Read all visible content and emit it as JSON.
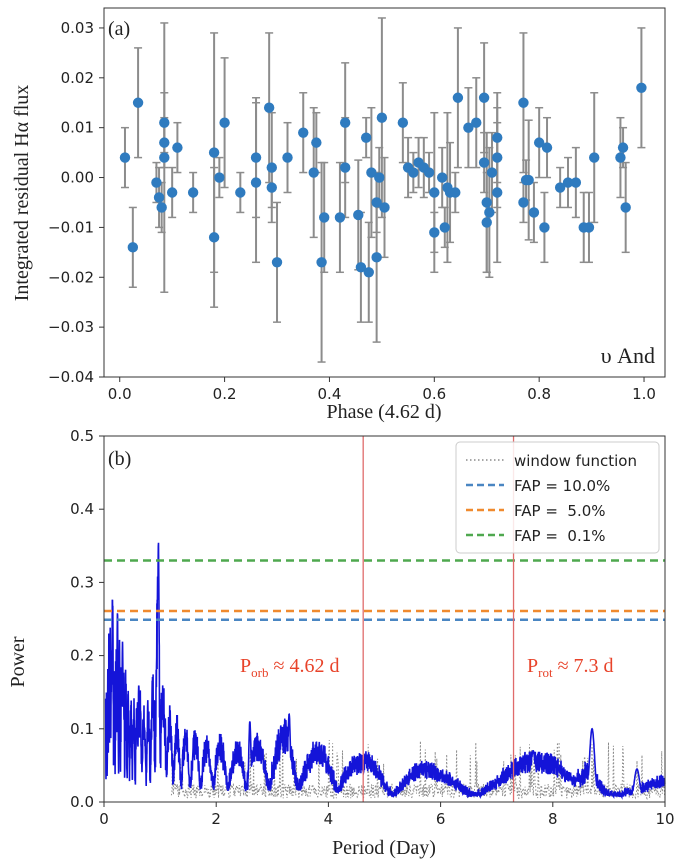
{
  "chart_data": [
    {
      "type": "scatter",
      "panel_label": "(a)",
      "annotation": "υ And",
      "xlabel": "Phase (4.62 d)",
      "ylabel": "Integrated residual Hα flux",
      "xlim": [
        -0.03,
        1.04
      ],
      "ylim": [
        -0.04,
        0.034
      ],
      "xticks": [
        "0.0",
        "0.2",
        "0.4",
        "0.6",
        "0.8",
        "1.0"
      ],
      "xtick_values": [
        0,
        0.2,
        0.4,
        0.6,
        0.8,
        1.0
      ],
      "yticks": [
        "0.03",
        "0.02",
        "0.01",
        "0.00",
        "−0.01",
        "−0.02",
        "−0.03",
        "−0.04"
      ],
      "ytick_values": [
        0.03,
        0.02,
        0.01,
        0.0,
        -0.01,
        -0.02,
        -0.03,
        -0.04
      ],
      "marker_color": "#2f7bbf",
      "errorbar_color": "#8c8c8c",
      "points": [
        {
          "x": 0.01,
          "y": 0.004,
          "err": 0.006
        },
        {
          "x": 0.025,
          "y": -0.014,
          "err": 0.008
        },
        {
          "x": 0.035,
          "y": 0.015,
          "err": 0.011
        },
        {
          "x": 0.07,
          "y": -0.001,
          "err": 0.004
        },
        {
          "x": 0.075,
          "y": -0.004,
          "err": 0.006
        },
        {
          "x": 0.08,
          "y": -0.006,
          "err": 0.005
        },
        {
          "x": 0.085,
          "y": 0.004,
          "err": 0.027
        },
        {
          "x": 0.085,
          "y": 0.011,
          "err": 0.006
        },
        {
          "x": 0.085,
          "y": 0.007,
          "err": 0.005
        },
        {
          "x": 0.1,
          "y": -0.003,
          "err": 0.005
        },
        {
          "x": 0.11,
          "y": 0.006,
          "err": 0.005
        },
        {
          "x": 0.14,
          "y": -0.003,
          "err": 0.004
        },
        {
          "x": 0.18,
          "y": 0.005,
          "err": 0.024
        },
        {
          "x": 0.18,
          "y": -0.012,
          "err": 0.014
        },
        {
          "x": 0.19,
          "y": 0.0,
          "err": 0.004
        },
        {
          "x": 0.2,
          "y": 0.011,
          "err": 0.013
        },
        {
          "x": 0.23,
          "y": -0.003,
          "err": 0.004
        },
        {
          "x": 0.26,
          "y": -0.001,
          "err": 0.016
        },
        {
          "x": 0.26,
          "y": 0.004,
          "err": 0.012
        },
        {
          "x": 0.285,
          "y": 0.014,
          "err": 0.015
        },
        {
          "x": 0.29,
          "y": -0.002,
          "err": 0.004
        },
        {
          "x": 0.29,
          "y": 0.002,
          "err": 0.011
        },
        {
          "x": 0.3,
          "y": -0.017,
          "err": 0.012
        },
        {
          "x": 0.32,
          "y": 0.004,
          "err": 0.007
        },
        {
          "x": 0.35,
          "y": 0.009,
          "err": 0.008
        },
        {
          "x": 0.37,
          "y": 0.001,
          "err": 0.013
        },
        {
          "x": 0.375,
          "y": 0.007,
          "err": 0.006
        },
        {
          "x": 0.385,
          "y": -0.017,
          "err": 0.02
        },
        {
          "x": 0.39,
          "y": -0.008,
          "err": 0.011
        },
        {
          "x": 0.42,
          "y": -0.008,
          "err": 0.011
        },
        {
          "x": 0.43,
          "y": 0.011,
          "err": 0.012
        },
        {
          "x": 0.43,
          "y": 0.002,
          "err": 0.01
        },
        {
          "x": 0.455,
          "y": -0.0075,
          "err": 0.011
        },
        {
          "x": 0.46,
          "y": -0.018,
          "err": 0.011
        },
        {
          "x": 0.47,
          "y": 0.008,
          "err": 0.004
        },
        {
          "x": 0.475,
          "y": -0.019,
          "err": 0.01
        },
        {
          "x": 0.48,
          "y": 0.001,
          "err": 0.013
        },
        {
          "x": 0.49,
          "y": -0.016,
          "err": 0.017
        },
        {
          "x": 0.49,
          "y": -0.005,
          "err": 0.006
        },
        {
          "x": 0.495,
          "y": 0.0,
          "err": 0.006
        },
        {
          "x": 0.5,
          "y": 0.012,
          "err": 0.02
        },
        {
          "x": 0.505,
          "y": -0.006,
          "err": 0.01
        },
        {
          "x": 0.54,
          "y": 0.011,
          "err": 0.008
        },
        {
          "x": 0.55,
          "y": 0.002,
          "err": 0.006
        },
        {
          "x": 0.56,
          "y": 0.001,
          "err": 0.004
        },
        {
          "x": 0.57,
          "y": 0.003,
          "err": 0.005
        },
        {
          "x": 0.58,
          "y": 0.002,
          "err": 0.006
        },
        {
          "x": 0.59,
          "y": 0.001,
          "err": 0.004
        },
        {
          "x": 0.6,
          "y": -0.011,
          "err": 0.004
        },
        {
          "x": 0.6,
          "y": -0.003,
          "err": 0.016
        },
        {
          "x": 0.615,
          "y": 0.0,
          "err": 0.006
        },
        {
          "x": 0.62,
          "y": -0.01,
          "err": 0.004
        },
        {
          "x": 0.625,
          "y": -0.002,
          "err": 0.015
        },
        {
          "x": 0.63,
          "y": -0.003,
          "err": 0.01
        },
        {
          "x": 0.64,
          "y": -0.003,
          "err": 0.004
        },
        {
          "x": 0.645,
          "y": 0.016,
          "err": 0.014
        },
        {
          "x": 0.665,
          "y": 0.01,
          "err": 0.008
        },
        {
          "x": 0.68,
          "y": 0.011,
          "err": 0.009
        },
        {
          "x": 0.695,
          "y": 0.003,
          "err": 0.006
        },
        {
          "x": 0.695,
          "y": 0.016,
          "err": 0.011
        },
        {
          "x": 0.7,
          "y": -0.005,
          "err": 0.014
        },
        {
          "x": 0.7,
          "y": -0.009,
          "err": 0.01
        },
        {
          "x": 0.705,
          "y": -0.007,
          "err": 0.013
        },
        {
          "x": 0.71,
          "y": 0.001,
          "err": 0.008
        },
        {
          "x": 0.72,
          "y": -0.003,
          "err": 0.014
        },
        {
          "x": 0.72,
          "y": 0.004,
          "err": 0.01
        },
        {
          "x": 0.72,
          "y": 0.008,
          "err": 0.009
        },
        {
          "x": 0.77,
          "y": -0.005,
          "err": 0.004
        },
        {
          "x": 0.77,
          "y": 0.015,
          "err": 0.014
        },
        {
          "x": 0.775,
          "y": -0.0005,
          "err": 0.004
        },
        {
          "x": 0.78,
          "y": -0.0005,
          "err": 0.012
        },
        {
          "x": 0.79,
          "y": -0.007,
          "err": 0.006
        },
        {
          "x": 0.8,
          "y": 0.007,
          "err": 0.007
        },
        {
          "x": 0.81,
          "y": -0.01,
          "err": 0.007
        },
        {
          "x": 0.815,
          "y": 0.006,
          "err": 0.006
        },
        {
          "x": 0.84,
          "y": -0.002,
          "err": 0.004
        },
        {
          "x": 0.855,
          "y": -0.001,
          "err": 0.005
        },
        {
          "x": 0.87,
          "y": -0.001,
          "err": 0.007
        },
        {
          "x": 0.885,
          "y": -0.01,
          "err": 0.007
        },
        {
          "x": 0.895,
          "y": -0.01,
          "err": 0.007
        },
        {
          "x": 0.905,
          "y": 0.004,
          "err": 0.013
        },
        {
          "x": 0.955,
          "y": 0.004,
          "err": 0.008
        },
        {
          "x": 0.96,
          "y": 0.006,
          "err": 0.004
        },
        {
          "x": 0.965,
          "y": -0.006,
          "err": 0.009
        },
        {
          "x": 0.995,
          "y": 0.018,
          "err": 0.012
        }
      ]
    },
    {
      "type": "line",
      "panel_label": "(b)",
      "xlabel": "Period (Day)",
      "ylabel": "Power",
      "xlim": [
        0,
        10
      ],
      "ylim": [
        0,
        0.5
      ],
      "xticks": [
        "0",
        "2",
        "4",
        "6",
        "8",
        "10"
      ],
      "xtick_values": [
        0,
        2,
        4,
        6,
        8,
        10
      ],
      "yticks": [
        "0.5",
        "0.4",
        "0.3",
        "0.2",
        "0.1",
        "0.0"
      ],
      "ytick_values": [
        0.5,
        0.4,
        0.3,
        0.2,
        0.1,
        0.0
      ],
      "vlines": [
        {
          "x": 4.62,
          "color": "#e06b6b",
          "label": "P",
          "sub": "orb",
          "text": " ≈ 4.62 d"
        },
        {
          "x": 7.3,
          "color": "#e06b6b",
          "label": "P",
          "sub": "rot",
          "text": " ≈ 7.3 d"
        }
      ],
      "fap_lines": [
        {
          "label": "FAP = 10.0%",
          "value": 0.249,
          "color": "#4a86c2"
        },
        {
          "label": "FAP =  5.0%",
          "value": 0.261,
          "color": "#f08a2e"
        },
        {
          "label": "FAP =  0.1%",
          "value": 0.33,
          "color": "#4fa84f"
        }
      ],
      "legend": [
        "window function",
        "FAP = 10.0%",
        "FAP =  5.0%",
        "FAP =  0.1%"
      ],
      "periodogram_color": "#1414d8",
      "window_color": "#8a8a8a",
      "envelope": {
        "x": [
          0.05,
          0.1,
          0.15,
          0.2,
          0.25,
          0.3,
          0.4,
          0.5,
          0.6,
          0.7,
          0.8,
          0.9,
          0.97,
          1.05,
          1.2,
          1.4,
          1.6,
          1.8,
          2.0,
          2.3,
          2.6,
          2.9,
          3.3,
          3.6,
          4.0,
          4.4,
          4.8,
          5.2,
          5.6,
          6.0,
          6.5,
          7.0,
          7.5,
          8.0,
          8.4,
          8.7,
          9.0,
          9.5,
          10.0
        ],
        "y": [
          0.17,
          0.27,
          0.28,
          0.22,
          0.26,
          0.21,
          0.2,
          0.15,
          0.16,
          0.15,
          0.14,
          0.2,
          0.355,
          0.18,
          0.13,
          0.11,
          0.1,
          0.09,
          0.1,
          0.08,
          0.1,
          0.09,
          0.12,
          0.08,
          0.09,
          0.07,
          0.07,
          0.05,
          0.06,
          0.05,
          0.045,
          0.05,
          0.07,
          0.07,
          0.05,
          0.1,
          0.05,
          0.04,
          0.05
        ]
      },
      "peaks": [
        {
          "x": 0.97,
          "y": 0.355
        },
        {
          "x": 0.15,
          "y": 0.28
        },
        {
          "x": 0.24,
          "y": 0.26
        },
        {
          "x": 0.33,
          "y": 0.22
        },
        {
          "x": 0.62,
          "y": 0.16
        },
        {
          "x": 2.6,
          "y": 0.11
        },
        {
          "x": 3.3,
          "y": 0.12
        },
        {
          "x": 8.7,
          "y": 0.1
        },
        {
          "x": 7.65,
          "y": 0.07
        },
        {
          "x": 9.5,
          "y": 0.045
        }
      ]
    }
  ]
}
